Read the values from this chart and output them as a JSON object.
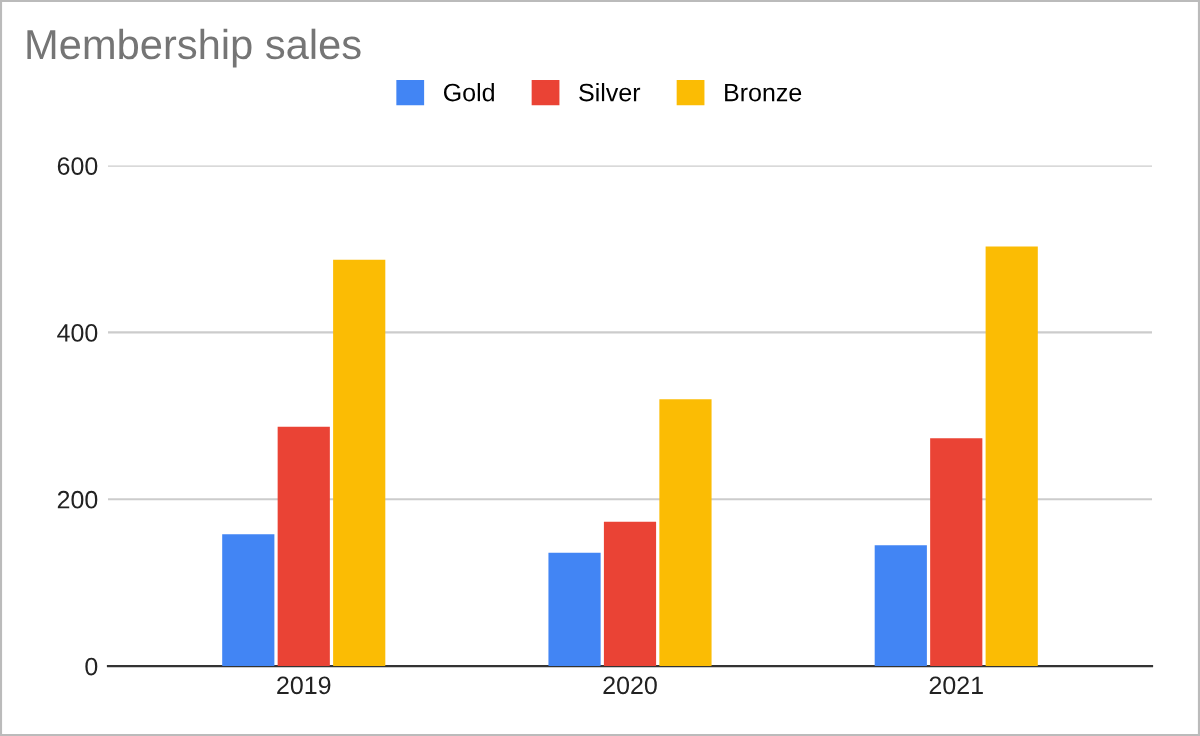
{
  "chart_data": {
    "type": "bar",
    "title": "Membership sales",
    "categories": [
      "2019",
      "2020",
      "2021"
    ],
    "series": [
      {
        "name": "Gold",
        "color": "#4285f4",
        "values": [
          158,
          136,
          145
        ]
      },
      {
        "name": "Silver",
        "color": "#ea4335",
        "values": [
          287,
          173,
          273
        ]
      },
      {
        "name": "Bronze",
        "color": "#fbbc04",
        "values": [
          487,
          320,
          503
        ]
      }
    ],
    "ylim": [
      0,
      600
    ],
    "yticks": [
      0,
      200,
      400,
      600
    ],
    "grid": "y",
    "legend": "top"
  }
}
